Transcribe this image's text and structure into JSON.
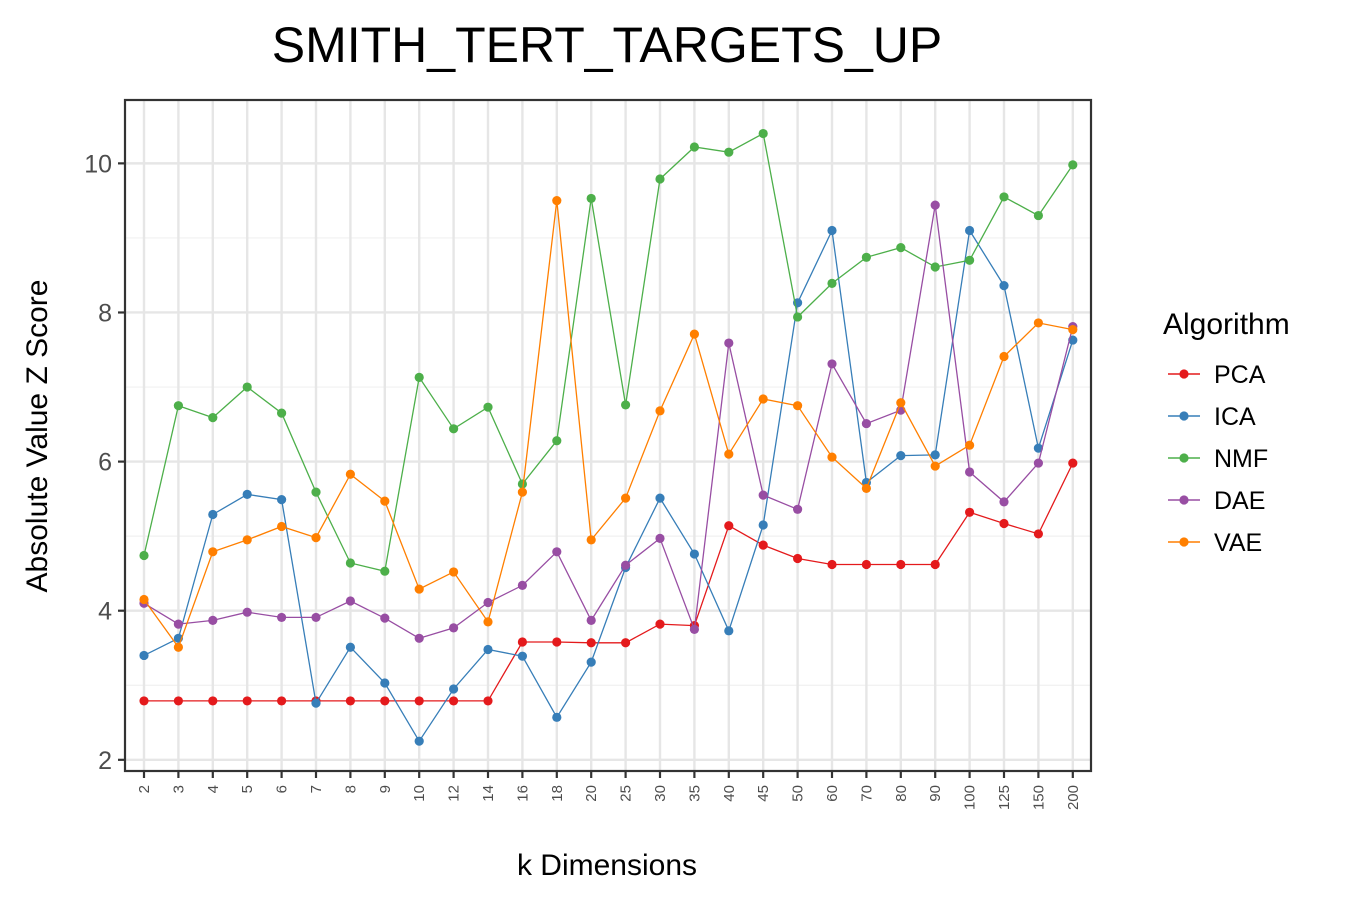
{
  "chart_data": {
    "type": "line",
    "title": "SMITH_TERT_TARGETS_UP",
    "xlabel": "k Dimensions",
    "ylabel": "Absolute Value Z Score",
    "categories": [
      "2",
      "3",
      "4",
      "5",
      "6",
      "7",
      "8",
      "9",
      "10",
      "12",
      "14",
      "16",
      "18",
      "20",
      "25",
      "30",
      "35",
      "40",
      "45",
      "50",
      "60",
      "70",
      "80",
      "90",
      "100",
      "125",
      "150",
      "200"
    ],
    "yticks": [
      2,
      4,
      6,
      8,
      10
    ],
    "ylim": [
      1.85,
      10.85
    ],
    "grid": true,
    "legend": {
      "title": "Algorithm",
      "position": "right"
    },
    "series": [
      {
        "name": "PCA",
        "color": "#e41a1c",
        "values": [
          2.79,
          2.79,
          2.79,
          2.79,
          2.79,
          2.79,
          2.79,
          2.79,
          2.79,
          2.79,
          2.79,
          3.58,
          3.58,
          3.57,
          3.57,
          3.82,
          3.8,
          5.14,
          4.88,
          4.7,
          4.62,
          4.62,
          4.62,
          4.62,
          5.32,
          5.17,
          5.03,
          5.98
        ]
      },
      {
        "name": "ICA",
        "color": "#377eb8",
        "values": [
          3.4,
          3.63,
          5.29,
          5.56,
          5.49,
          2.76,
          3.51,
          3.03,
          2.25,
          2.95,
          3.48,
          3.39,
          2.57,
          3.31,
          4.58,
          5.51,
          4.76,
          3.73,
          5.15,
          8.13,
          9.1,
          5.72,
          6.08,
          6.09,
          9.1,
          8.36,
          6.18,
          7.63
        ]
      },
      {
        "name": "NMF",
        "color": "#4daf4a",
        "values": [
          4.74,
          6.75,
          6.59,
          7.0,
          6.65,
          5.59,
          4.64,
          4.53,
          7.13,
          6.44,
          6.73,
          5.7,
          6.28,
          9.53,
          6.76,
          9.79,
          10.22,
          10.15,
          10.4,
          7.94,
          8.39,
          8.74,
          8.87,
          8.61,
          8.7,
          9.55,
          9.3,
          9.98
        ]
      },
      {
        "name": "DAE",
        "color": "#984ea3",
        "values": [
          4.1,
          3.82,
          3.87,
          3.98,
          3.91,
          3.91,
          4.13,
          3.9,
          3.63,
          3.77,
          4.11,
          4.34,
          4.79,
          3.87,
          4.61,
          4.97,
          3.75,
          7.59,
          5.55,
          5.36,
          7.31,
          6.51,
          6.69,
          9.44,
          5.86,
          5.46,
          5.98,
          7.81
        ]
      },
      {
        "name": "VAE",
        "color": "#ff7f00",
        "values": [
          4.15,
          3.51,
          4.79,
          4.95,
          5.13,
          4.98,
          5.83,
          5.47,
          4.29,
          4.52,
          3.85,
          5.59,
          9.5,
          4.95,
          5.51,
          6.68,
          7.71,
          6.1,
          6.84,
          6.75,
          6.06,
          5.64,
          6.79,
          5.94,
          6.22,
          7.41,
          7.86,
          7.77
        ]
      }
    ]
  }
}
